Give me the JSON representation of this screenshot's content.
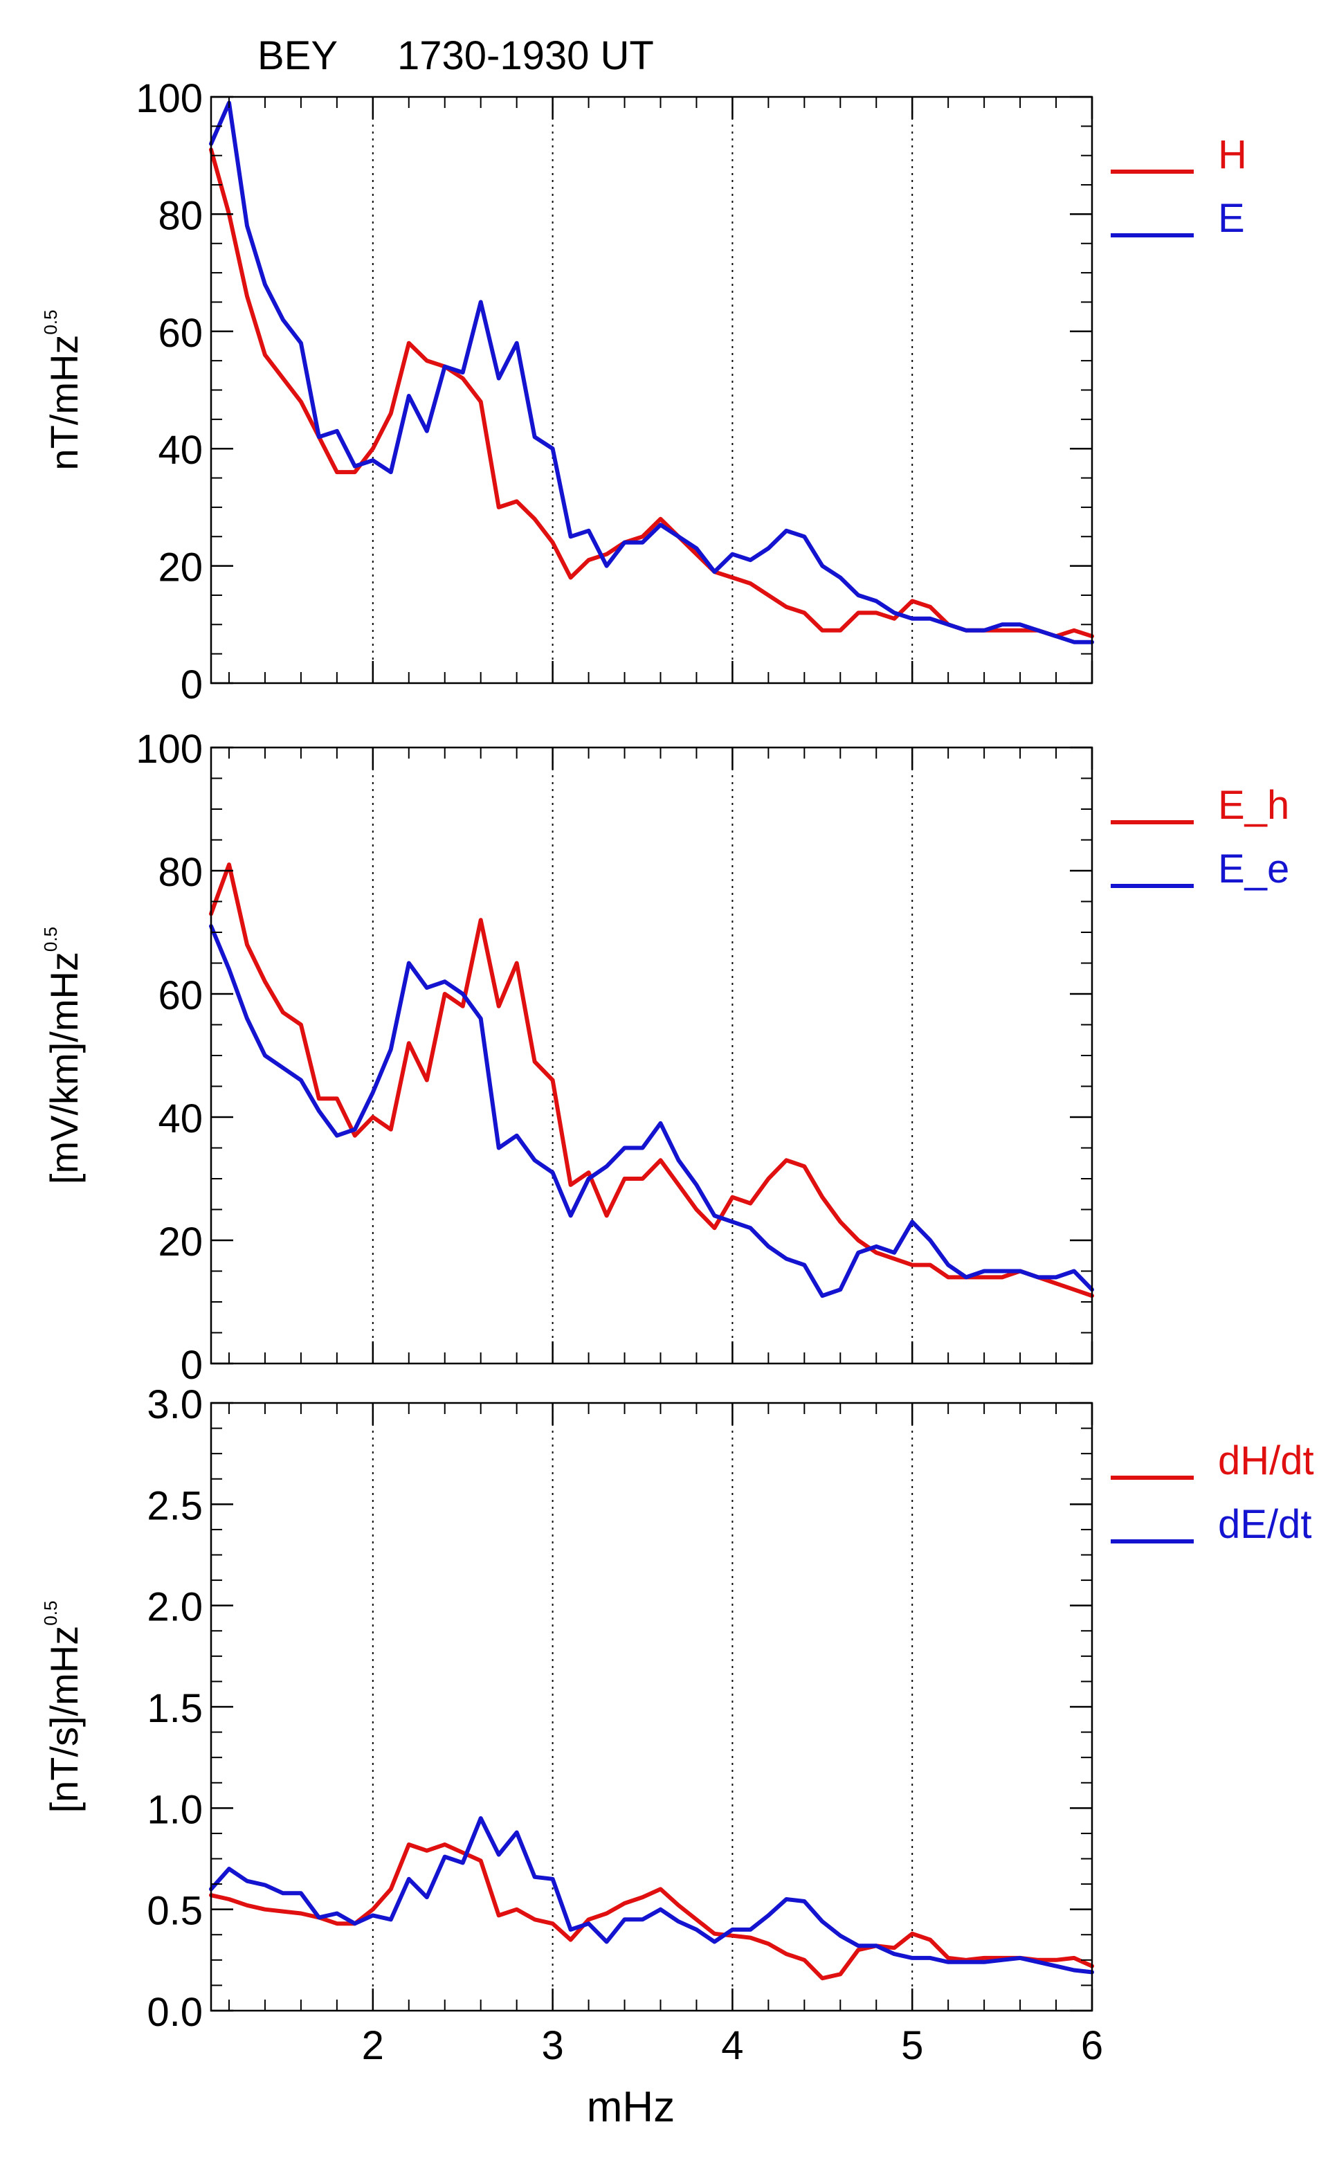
{
  "header": {
    "station": "BEY",
    "time_range": "1730-1930 UT"
  },
  "colors": {
    "red": "#e01010",
    "blue": "#1414d0",
    "axis": "#000000"
  },
  "chart_data": [
    {
      "type": "line",
      "ylabel": "nT/mHz",
      "ylabel_sup": "0.5",
      "ylim": [
        0,
        100
      ],
      "yticks": [
        0,
        20,
        40,
        60,
        80,
        100
      ],
      "ytick_labels": [
        "0",
        "20",
        "40",
        "60",
        "80",
        "100"
      ],
      "xlim": [
        1.1,
        6
      ],
      "xticks": [
        2,
        3,
        4,
        5,
        6
      ],
      "xtick_labels": [
        "2",
        "3",
        "4",
        "5",
        "6"
      ],
      "vlines": [
        2,
        3,
        4,
        5
      ],
      "legend": "top-right",
      "series": [
        {
          "name": "H",
          "color": "#e01010",
          "x": [
            1.1,
            1.2,
            1.3,
            1.4,
            1.5,
            1.6,
            1.7,
            1.8,
            1.9,
            2.0,
            2.1,
            2.2,
            2.3,
            2.4,
            2.5,
            2.6,
            2.7,
            2.8,
            2.9,
            3.0,
            3.1,
            3.2,
            3.3,
            3.4,
            3.5,
            3.6,
            3.7,
            3.8,
            3.9,
            4.0,
            4.1,
            4.2,
            4.3,
            4.4,
            4.5,
            4.6,
            4.7,
            4.8,
            4.9,
            5.0,
            5.1,
            5.2,
            5.3,
            5.4,
            5.5,
            5.6,
            5.7,
            5.8,
            5.9,
            6.0
          ],
          "values": [
            91,
            80,
            66,
            56,
            52,
            48,
            42,
            36,
            36,
            40,
            46,
            58,
            55,
            54,
            52,
            48,
            30,
            31,
            28,
            24,
            18,
            21,
            22,
            24,
            25,
            28,
            25,
            22,
            19,
            18,
            17,
            15,
            13,
            12,
            9,
            9,
            12,
            12,
            11,
            14,
            13,
            10,
            9,
            9,
            9,
            9,
            9,
            8,
            9,
            8
          ]
        },
        {
          "name": "E",
          "color": "#1414d0",
          "x": [
            1.1,
            1.2,
            1.3,
            1.4,
            1.5,
            1.6,
            1.7,
            1.8,
            1.9,
            2.0,
            2.1,
            2.2,
            2.3,
            2.4,
            2.5,
            2.6,
            2.7,
            2.8,
            2.9,
            3.0,
            3.1,
            3.2,
            3.3,
            3.4,
            3.5,
            3.6,
            3.7,
            3.8,
            3.9,
            4.0,
            4.1,
            4.2,
            4.3,
            4.4,
            4.5,
            4.6,
            4.7,
            4.8,
            4.9,
            5.0,
            5.1,
            5.2,
            5.3,
            5.4,
            5.5,
            5.6,
            5.7,
            5.8,
            5.9,
            6.0
          ],
          "values": [
            92,
            99,
            78,
            68,
            62,
            58,
            42,
            43,
            37,
            38,
            36,
            49,
            43,
            54,
            53,
            65,
            52,
            58,
            42,
            40,
            25,
            26,
            20,
            24,
            24,
            27,
            25,
            23,
            19,
            22,
            21,
            23,
            26,
            25,
            20,
            18,
            15,
            14,
            12,
            11,
            11,
            10,
            9,
            9,
            10,
            10,
            9,
            8,
            7,
            7
          ]
        }
      ]
    },
    {
      "type": "line",
      "ylabel": "[mV/km]/mHz",
      "ylabel_sup": "0.5",
      "ylim": [
        0,
        100
      ],
      "yticks": [
        0,
        20,
        40,
        60,
        80,
        100
      ],
      "ytick_labels": [
        "0",
        "20",
        "40",
        "60",
        "80",
        "100"
      ],
      "xlim": [
        1.1,
        6
      ],
      "xticks": [
        2,
        3,
        4,
        5,
        6
      ],
      "xtick_labels": [
        "2",
        "3",
        "4",
        "5",
        "6"
      ],
      "vlines": [
        2,
        3,
        4,
        5
      ],
      "legend": "top-right",
      "series": [
        {
          "name": "E_h",
          "color": "#e01010",
          "x": [
            1.1,
            1.2,
            1.3,
            1.4,
            1.5,
            1.6,
            1.7,
            1.8,
            1.9,
            2.0,
            2.1,
            2.2,
            2.3,
            2.4,
            2.5,
            2.6,
            2.7,
            2.8,
            2.9,
            3.0,
            3.1,
            3.2,
            3.3,
            3.4,
            3.5,
            3.6,
            3.7,
            3.8,
            3.9,
            4.0,
            4.1,
            4.2,
            4.3,
            4.4,
            4.5,
            4.6,
            4.7,
            4.8,
            4.9,
            5.0,
            5.1,
            5.2,
            5.3,
            5.4,
            5.5,
            5.6,
            5.7,
            5.8,
            5.9,
            6.0
          ],
          "values": [
            73,
            81,
            68,
            62,
            57,
            55,
            43,
            43,
            37,
            40,
            38,
            52,
            46,
            60,
            58,
            72,
            58,
            65,
            49,
            46,
            29,
            31,
            24,
            30,
            30,
            33,
            29,
            25,
            22,
            27,
            26,
            30,
            33,
            32,
            27,
            23,
            20,
            18,
            17,
            16,
            16,
            14,
            14,
            14,
            14,
            15,
            14,
            13,
            12,
            11
          ]
        },
        {
          "name": "E_e",
          "color": "#1414d0",
          "x": [
            1.1,
            1.2,
            1.3,
            1.4,
            1.5,
            1.6,
            1.7,
            1.8,
            1.9,
            2.0,
            2.1,
            2.2,
            2.3,
            2.4,
            2.5,
            2.6,
            2.7,
            2.8,
            2.9,
            3.0,
            3.1,
            3.2,
            3.3,
            3.4,
            3.5,
            3.6,
            3.7,
            3.8,
            3.9,
            4.0,
            4.1,
            4.2,
            4.3,
            4.4,
            4.5,
            4.6,
            4.7,
            4.8,
            4.9,
            5.0,
            5.1,
            5.2,
            5.3,
            5.4,
            5.5,
            5.6,
            5.7,
            5.8,
            5.9,
            6.0
          ],
          "values": [
            71,
            64,
            56,
            50,
            48,
            46,
            41,
            37,
            38,
            44,
            51,
            65,
            61,
            62,
            60,
            56,
            35,
            37,
            33,
            31,
            24,
            30,
            32,
            35,
            35,
            39,
            33,
            29,
            24,
            23,
            22,
            19,
            17,
            16,
            11,
            12,
            18,
            19,
            18,
            23,
            20,
            16,
            14,
            15,
            15,
            15,
            14,
            14,
            15,
            12
          ]
        }
      ]
    },
    {
      "type": "line",
      "ylabel": "[nT/s]/mHz",
      "ylabel_sup": "0.5",
      "xlabel": "mHz",
      "ylim": [
        0,
        3
      ],
      "yticks": [
        0,
        0.5,
        1,
        1.5,
        2,
        2.5,
        3
      ],
      "ytick_labels": [
        "0.0",
        "0.5",
        "1.0",
        "1.5",
        "2.0",
        "2.5",
        "3.0"
      ],
      "xlim": [
        1.1,
        6
      ],
      "xticks": [
        2,
        3,
        4,
        5,
        6
      ],
      "xtick_labels": [
        "2",
        "3",
        "4",
        "5",
        "6"
      ],
      "vlines": [
        2,
        3,
        4,
        5
      ],
      "legend": "top-right",
      "series": [
        {
          "name": "dH/dt",
          "color": "#e01010",
          "x": [
            1.1,
            1.2,
            1.3,
            1.4,
            1.5,
            1.6,
            1.7,
            1.8,
            1.9,
            2.0,
            2.1,
            2.2,
            2.3,
            2.4,
            2.5,
            2.6,
            2.7,
            2.8,
            2.9,
            3.0,
            3.1,
            3.2,
            3.3,
            3.4,
            3.5,
            3.6,
            3.7,
            3.8,
            3.9,
            4.0,
            4.1,
            4.2,
            4.3,
            4.4,
            4.5,
            4.6,
            4.7,
            4.8,
            4.9,
            5.0,
            5.1,
            5.2,
            5.3,
            5.4,
            5.5,
            5.6,
            5.7,
            5.8,
            5.9,
            6.0
          ],
          "values": [
            0.57,
            0.55,
            0.52,
            0.5,
            0.49,
            0.48,
            0.46,
            0.43,
            0.43,
            0.5,
            0.6,
            0.82,
            0.79,
            0.82,
            0.78,
            0.74,
            0.47,
            0.5,
            0.45,
            0.43,
            0.35,
            0.45,
            0.48,
            0.53,
            0.56,
            0.6,
            0.52,
            0.45,
            0.38,
            0.37,
            0.36,
            0.33,
            0.28,
            0.25,
            0.16,
            0.18,
            0.3,
            0.32,
            0.31,
            0.38,
            0.35,
            0.26,
            0.25,
            0.26,
            0.26,
            0.26,
            0.25,
            0.25,
            0.26,
            0.22
          ]
        },
        {
          "name": "dE/dt",
          "color": "#1414d0",
          "x": [
            1.1,
            1.2,
            1.3,
            1.4,
            1.5,
            1.6,
            1.7,
            1.8,
            1.9,
            2.0,
            2.1,
            2.2,
            2.3,
            2.4,
            2.5,
            2.6,
            2.7,
            2.8,
            2.9,
            3.0,
            3.1,
            3.2,
            3.3,
            3.4,
            3.5,
            3.6,
            3.7,
            3.8,
            3.9,
            4.0,
            4.1,
            4.2,
            4.3,
            4.4,
            4.5,
            4.6,
            4.7,
            4.8,
            4.9,
            5.0,
            5.1,
            5.2,
            5.3,
            5.4,
            5.5,
            5.6,
            5.7,
            5.8,
            5.9,
            6.0
          ],
          "values": [
            0.6,
            0.7,
            0.64,
            0.62,
            0.58,
            0.58,
            0.46,
            0.48,
            0.43,
            0.47,
            0.45,
            0.65,
            0.56,
            0.76,
            0.73,
            0.95,
            0.77,
            0.88,
            0.66,
            0.65,
            0.4,
            0.43,
            0.34,
            0.45,
            0.45,
            0.5,
            0.44,
            0.4,
            0.34,
            0.4,
            0.4,
            0.47,
            0.55,
            0.54,
            0.44,
            0.37,
            0.32,
            0.32,
            0.28,
            0.26,
            0.26,
            0.24,
            0.24,
            0.24,
            0.25,
            0.26,
            0.24,
            0.22,
            0.2,
            0.19
          ]
        }
      ]
    }
  ]
}
